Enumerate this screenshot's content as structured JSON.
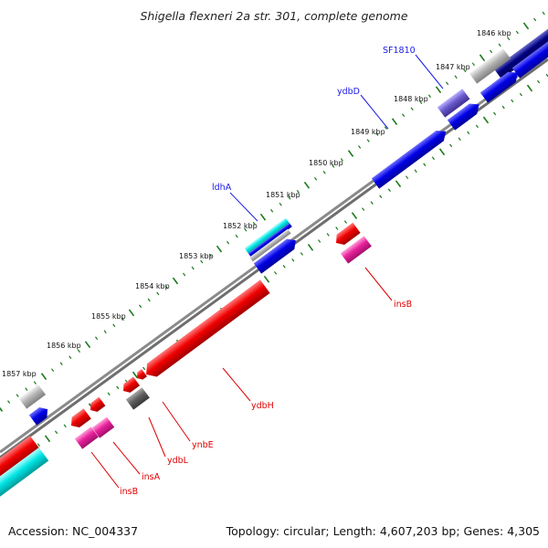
{
  "title": "Shigella flexneri 2a str. 301, complete genome",
  "footer": {
    "accession": "Accession: NC_004337",
    "topology": "Topology: circular; Length: 4,607,203 bp; Genes: 4,305"
  },
  "scale_labels": [
    "1846 kbp",
    "1847 kbp",
    "1848 kbp",
    "1849 kbp",
    "1850 kbp",
    "1851 kbp",
    "1852 kbp",
    "1853 kbp",
    "1854 kbp",
    "1855 kbp",
    "1856 kbp",
    "1857 kbp"
  ],
  "genes": {
    "sf1810": "SF1810",
    "ydbd": "ydbD",
    "ldha": "ldhA",
    "insb_top": "insB",
    "ydbh": "ydbH",
    "ynbe": "ynbE",
    "ydbl": "ydbL",
    "insa": "insA",
    "insb_bottom": "insB"
  },
  "colors": {
    "blue": "#0000e6",
    "dark_navy": "#000080",
    "cyan": "#00e5e5",
    "slate_blue": "#6a5acd",
    "red": "#f00000",
    "magenta": "#e8209a",
    "gray": "#a0a0a0",
    "dark_gray": "#606060",
    "tick_green": "#1a7a1a"
  }
}
